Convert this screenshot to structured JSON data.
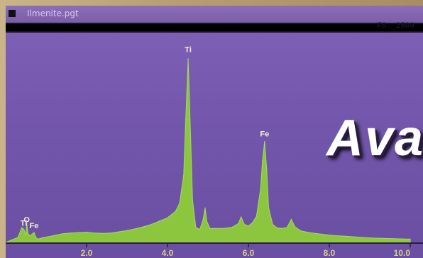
{
  "window": {
    "file_name": "Ilmenite.pgt",
    "full_scale": "FS: 2500"
  },
  "overlay": {
    "banner_text": "Ava"
  },
  "colors": {
    "spectrum": "#8cc63f",
    "background": "#7559ac",
    "frame": "#b9a27a"
  },
  "chart_data": {
    "type": "area",
    "title": "",
    "xlabel": "",
    "ylabel": "",
    "xlim": [
      0.0,
      10.0
    ],
    "ylim": [
      0,
      2500
    ],
    "xticks": [
      "2.0",
      "4.0",
      "6.0",
      "8.0",
      "10.0"
    ],
    "xtick_values": [
      2.0,
      4.0,
      6.0,
      8.0,
      10.0
    ],
    "grid": false,
    "peak_labels": [
      {
        "text": "O",
        "x": 0.52,
        "y": 210
      },
      {
        "text": "Ti",
        "x": 0.45,
        "y": 170
      },
      {
        "text": "Fe",
        "x": 0.7,
        "y": 140
      },
      {
        "text": "Ti",
        "x": 4.51,
        "y": 2290
      },
      {
        "text": "Fe",
        "x": 6.4,
        "y": 1260
      }
    ],
    "series": [
      {
        "x": [
          0.0,
          0.15,
          0.3,
          0.4,
          0.45,
          0.5,
          0.52,
          0.55,
          0.6,
          0.7,
          0.75,
          0.8,
          0.9,
          1.0,
          1.2,
          1.4,
          1.6,
          1.8,
          2.0,
          2.2,
          2.4,
          2.6,
          2.8,
          3.0,
          3.2,
          3.4,
          3.6,
          3.8,
          4.0,
          4.2,
          4.3,
          4.4,
          4.45,
          4.51,
          4.57,
          4.62,
          4.7,
          4.8,
          4.88,
          4.93,
          4.97,
          5.05,
          5.2,
          5.4,
          5.6,
          5.75,
          5.82,
          5.9,
          6.0,
          6.1,
          6.2,
          6.3,
          6.35,
          6.4,
          6.45,
          6.5,
          6.6,
          6.7,
          6.8,
          6.95,
          7.06,
          7.15,
          7.3,
          7.5,
          7.8,
          8.1,
          8.4,
          8.7,
          9.0,
          9.3,
          9.6,
          10.0
        ],
        "y": [
          0,
          30,
          60,
          180,
          160,
          90,
          230,
          110,
          80,
          120,
          60,
          40,
          55,
          65,
          85,
          105,
          115,
          120,
          125,
          115,
          110,
          115,
          130,
          145,
          165,
          190,
          220,
          260,
          300,
          380,
          480,
          820,
          1500,
          2240,
          1300,
          520,
          180,
          160,
          280,
          420,
          260,
          170,
          170,
          170,
          185,
          230,
          310,
          220,
          200,
          240,
          320,
          650,
          1000,
          1230,
          900,
          420,
          220,
          180,
          170,
          180,
          280,
          190,
          140,
          120,
          100,
          85,
          75,
          65,
          55,
          50,
          45,
          40
        ]
      }
    ]
  }
}
